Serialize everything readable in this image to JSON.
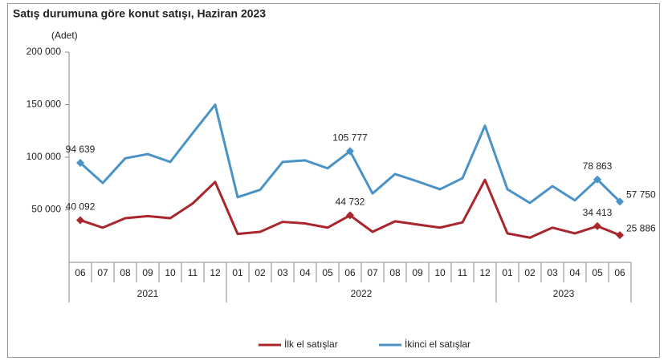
{
  "chart_data": {
    "type": "line",
    "title": "Satış durumuna göre konut satışı, Haziran 2023",
    "y_unit": "(Adet)",
    "categories": [
      "06",
      "07",
      "08",
      "09",
      "10",
      "11",
      "12",
      "01",
      "02",
      "03",
      "04",
      "05",
      "06",
      "07",
      "08",
      "09",
      "10",
      "11",
      "12",
      "01",
      "02",
      "03",
      "04",
      "05",
      "06"
    ],
    "year_groups": [
      {
        "label": "2021",
        "count": 7
      },
      {
        "label": "2022",
        "count": 12
      },
      {
        "label": "2023",
        "count": 6
      }
    ],
    "ylim": [
      0,
      200000
    ],
    "yticks": [
      {
        "value": 50000,
        "label": "50 000"
      },
      {
        "value": 100000,
        "label": "100 000"
      },
      {
        "value": 150000,
        "label": "150 000"
      },
      {
        "value": 200000,
        "label": "200 000"
      }
    ],
    "legend": "bottom",
    "series": [
      {
        "name": "İlk el satışlar",
        "color": "#a9262d",
        "values": [
          40092,
          33000,
          42000,
          44000,
          42000,
          56000,
          76500,
          27000,
          29000,
          38500,
          37000,
          33000,
          44732,
          29000,
          39000,
          36000,
          33000,
          38000,
          78500,
          27500,
          23500,
          33000,
          27500,
          34413,
          25886
        ],
        "value_labels": [
          "40 092",
          null,
          null,
          null,
          null,
          null,
          null,
          null,
          null,
          null,
          null,
          null,
          "44 732",
          null,
          null,
          null,
          null,
          null,
          null,
          null,
          null,
          null,
          null,
          "34 413",
          "25 886"
        ]
      },
      {
        "name": "İkinci el satışlar",
        "color": "#4a93c6",
        "values": [
          94639,
          75500,
          99000,
          103000,
          95500,
          123000,
          150000,
          62000,
          69000,
          95500,
          97000,
          89500,
          105777,
          65500,
          84000,
          77000,
          69500,
          80000,
          130000,
          69500,
          56500,
          72500,
          59000,
          78863,
          57750
        ],
        "value_labels": [
          "94 639",
          null,
          null,
          null,
          null,
          null,
          null,
          null,
          null,
          null,
          null,
          null,
          "105 777",
          null,
          null,
          null,
          null,
          null,
          null,
          null,
          null,
          null,
          null,
          "78 863",
          "57 750"
        ]
      }
    ]
  }
}
